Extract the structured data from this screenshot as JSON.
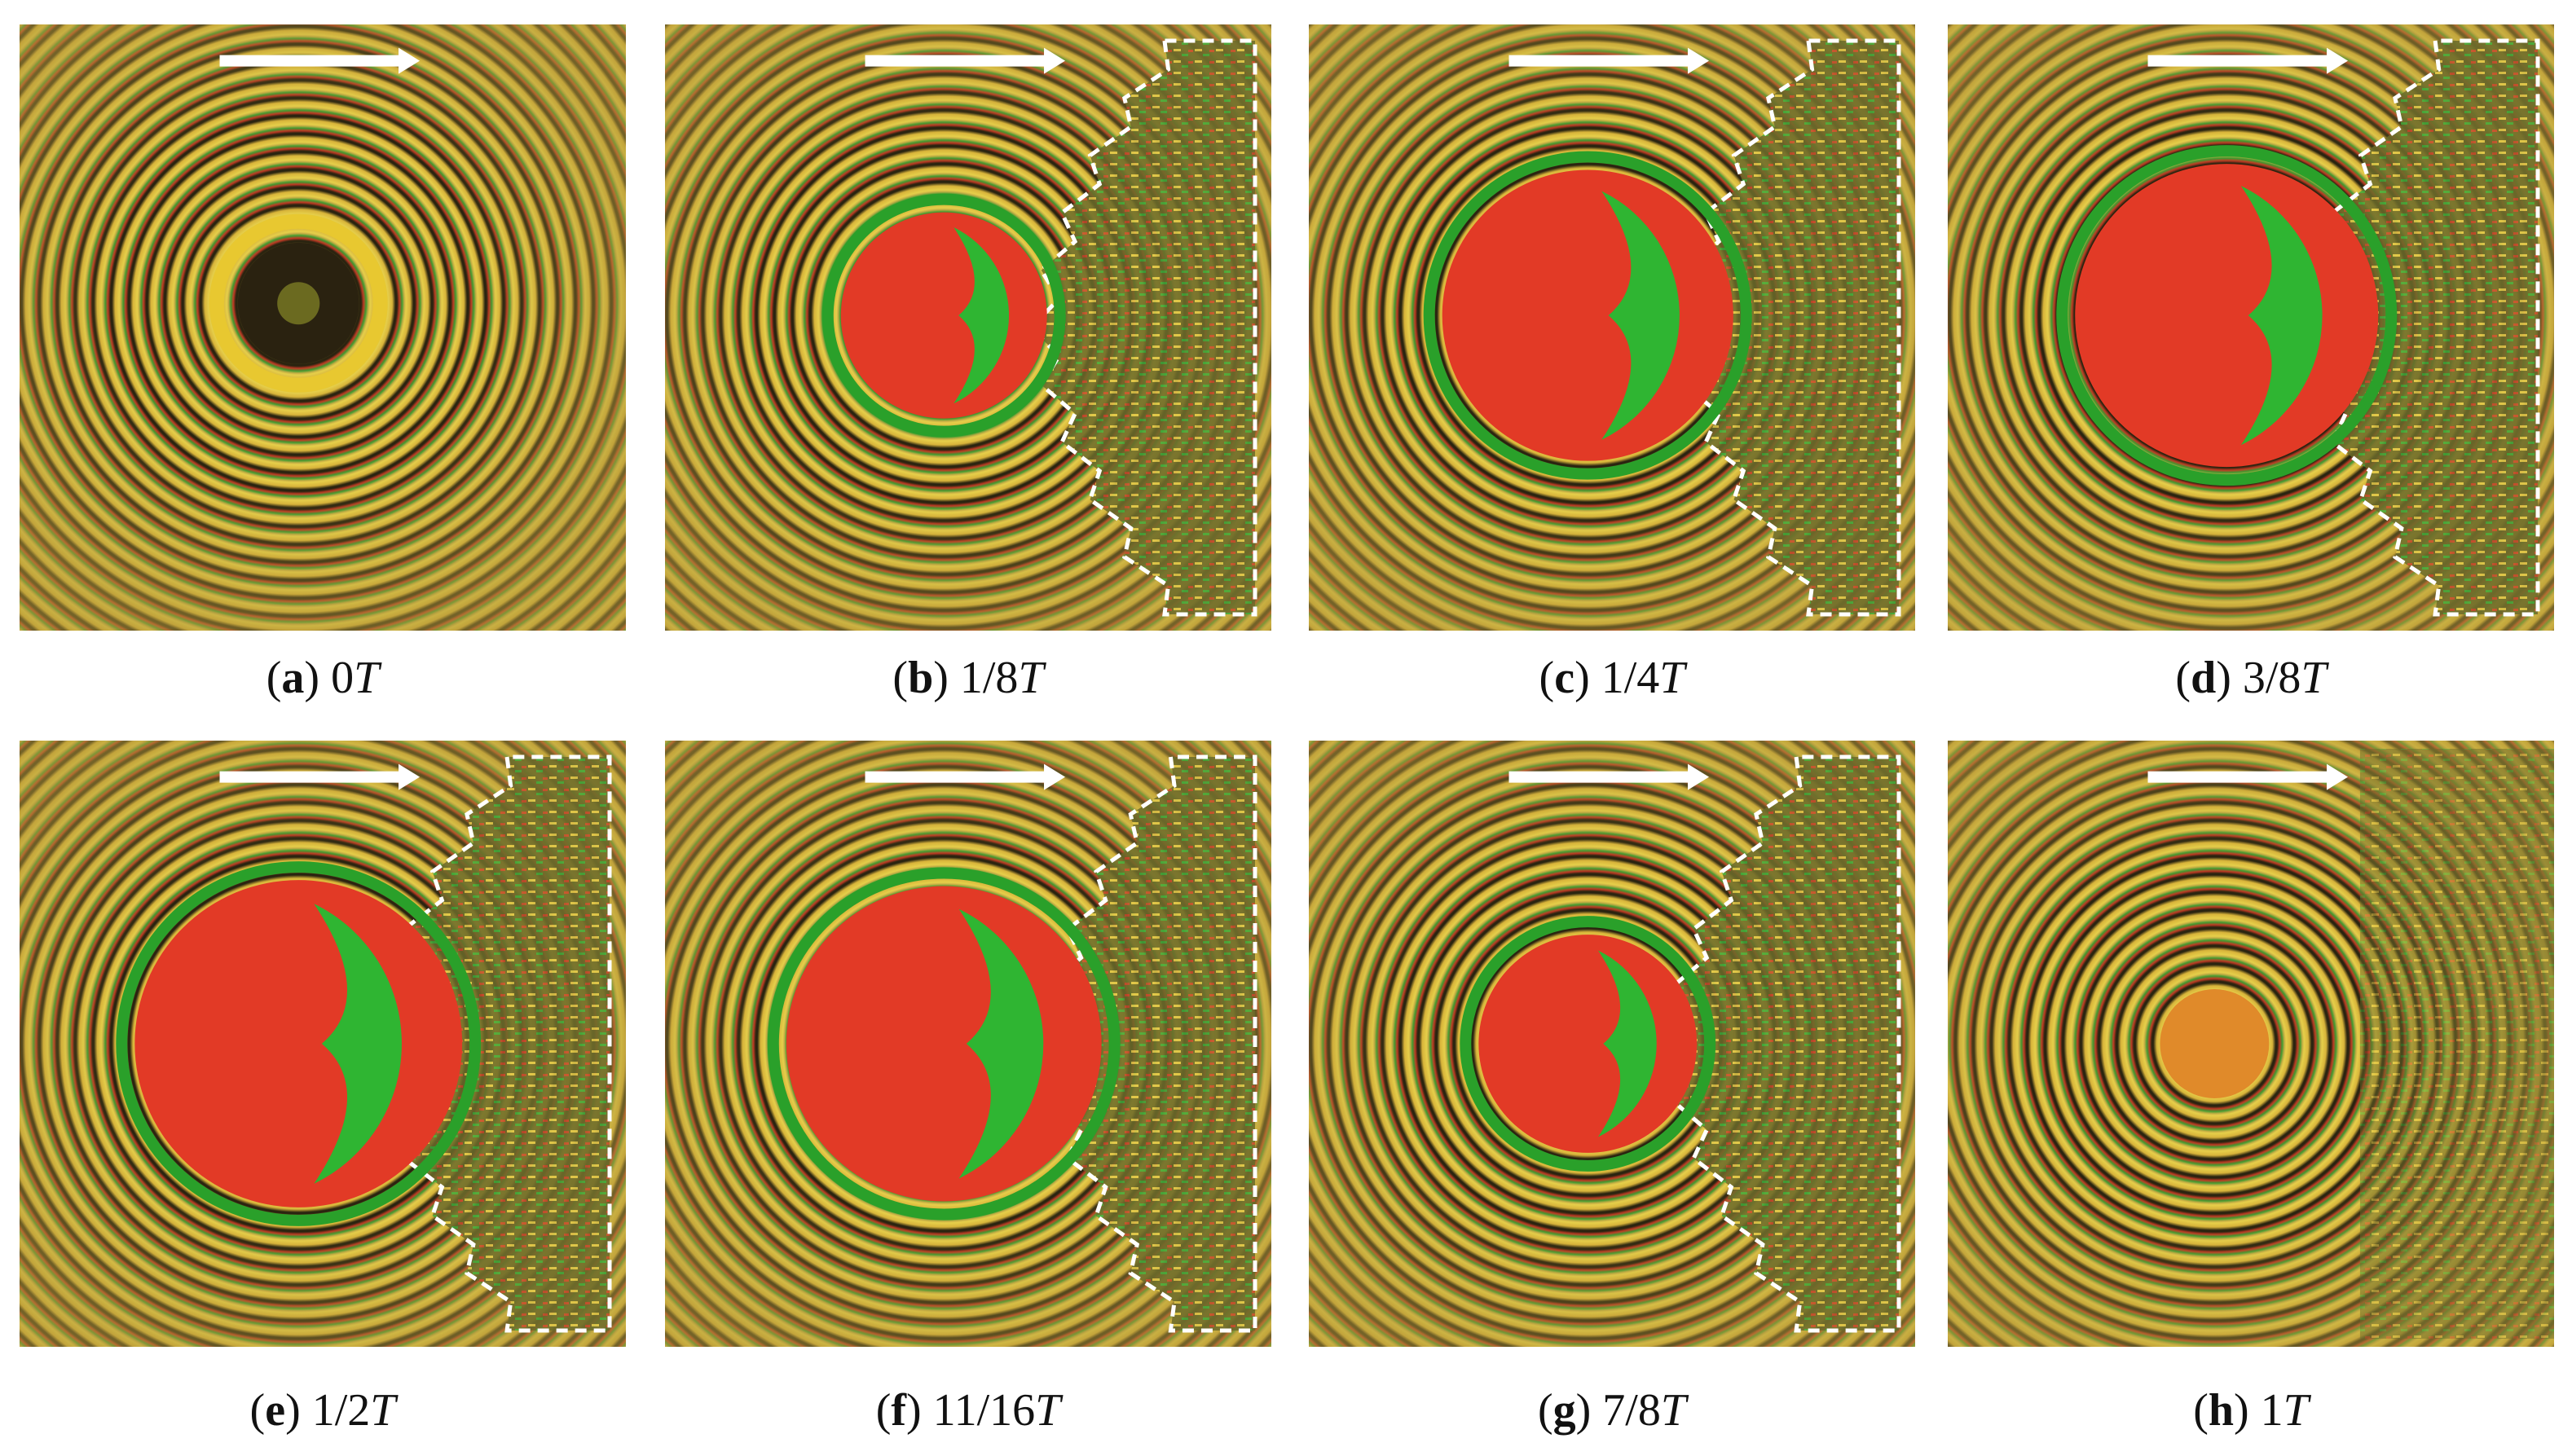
{
  "panels": [
    {
      "open": "(",
      "letter": "a",
      "close": ")",
      "value": "0",
      "unit": "T"
    },
    {
      "open": "(",
      "letter": "b",
      "close": ")",
      "value": "1/8",
      "unit": "T"
    },
    {
      "open": "(",
      "letter": "c",
      "close": ")",
      "value": "1/4",
      "unit": "T"
    },
    {
      "open": "(",
      "letter": "d",
      "close": ")",
      "value": "3/8",
      "unit": "T"
    },
    {
      "open": "(",
      "letter": "e",
      "close": ")",
      "value": "1/2",
      "unit": "T"
    },
    {
      "open": "(",
      "letter": "f",
      "close": ")",
      "value": "11/16",
      "unit": "T"
    },
    {
      "open": "(",
      "letter": "g",
      "close": ")",
      "value": "7/8",
      "unit": "T"
    },
    {
      "open": "(",
      "letter": "h",
      "close": ")",
      "value": "1",
      "unit": "T"
    }
  ]
}
